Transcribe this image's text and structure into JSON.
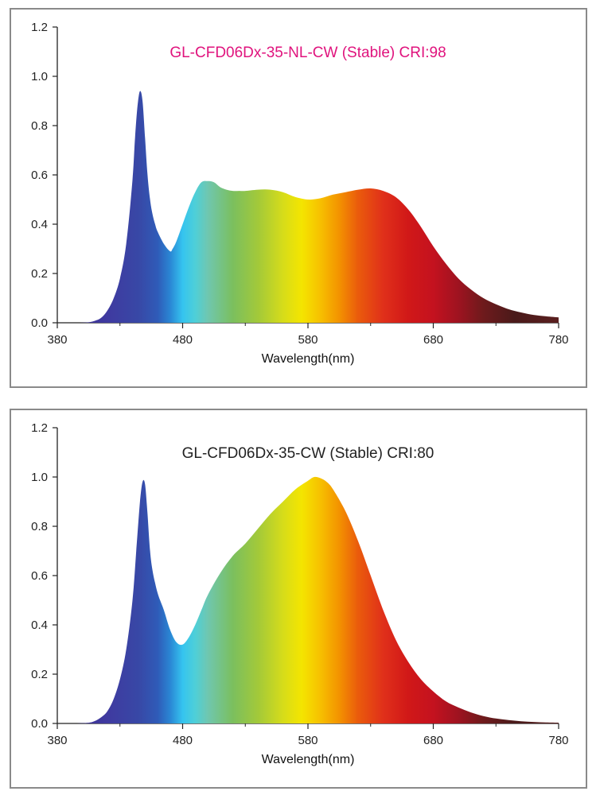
{
  "chart_data": [
    {
      "type": "area",
      "title": "GL-CFD06Dx-35-NL-CW (Stable) CRI:98",
      "title_color": "#e0137d",
      "xlabel": "Wavelength(nm)",
      "ylabel": "",
      "xlim": [
        380,
        780
      ],
      "ylim": [
        0,
        1.2
      ],
      "xticks": [
        "380",
        "480",
        "580",
        "680",
        "780"
      ],
      "yticks": [
        "0.0",
        "0.2",
        "0.4",
        "0.6",
        "0.8",
        "1.0",
        "1.2"
      ],
      "x": [
        398,
        405,
        410,
        415,
        420,
        425,
        430,
        435,
        440,
        442,
        444,
        446,
        448,
        450,
        452,
        454,
        456,
        458,
        460,
        465,
        470,
        472,
        475,
        480,
        485,
        490,
        495,
        500,
        505,
        510,
        515,
        520,
        525,
        530,
        540,
        550,
        560,
        570,
        580,
        590,
        600,
        610,
        620,
        630,
        640,
        650,
        660,
        670,
        680,
        690,
        700,
        710,
        720,
        730,
        740,
        750,
        760,
        770,
        780
      ],
      "values": [
        0.0,
        0.002,
        0.008,
        0.02,
        0.05,
        0.1,
        0.18,
        0.32,
        0.58,
        0.75,
        0.88,
        0.94,
        0.9,
        0.75,
        0.6,
        0.5,
        0.44,
        0.4,
        0.37,
        0.32,
        0.29,
        0.3,
        0.33,
        0.4,
        0.47,
        0.53,
        0.57,
        0.575,
        0.57,
        0.55,
        0.54,
        0.535,
        0.535,
        0.535,
        0.54,
        0.54,
        0.53,
        0.51,
        0.5,
        0.505,
        0.52,
        0.53,
        0.54,
        0.545,
        0.535,
        0.51,
        0.46,
        0.39,
        0.31,
        0.24,
        0.18,
        0.135,
        0.1,
        0.075,
        0.055,
        0.042,
        0.032,
        0.026,
        0.022
      ]
    },
    {
      "type": "area",
      "title": "GL-CFD06Dx-35-CW (Stable) CRI:80",
      "title_color": "#222222",
      "xlabel": "Wavelength(nm)",
      "ylabel": "",
      "xlim": [
        380,
        780
      ],
      "ylim": [
        0,
        1.2
      ],
      "xticks": [
        "380",
        "480",
        "580",
        "680",
        "780"
      ],
      "yticks": [
        "0.0",
        "0.2",
        "0.4",
        "0.6",
        "0.8",
        "1.0",
        "1.2"
      ],
      "x": [
        395,
        405,
        410,
        415,
        420,
        425,
        430,
        435,
        440,
        443,
        446,
        448,
        450,
        452,
        454,
        456,
        458,
        460,
        462,
        465,
        470,
        475,
        480,
        485,
        490,
        495,
        500,
        510,
        520,
        530,
        540,
        550,
        560,
        570,
        580,
        585,
        590,
        595,
        600,
        610,
        620,
        630,
        640,
        650,
        660,
        670,
        680,
        690,
        700,
        710,
        720,
        730,
        740,
        750,
        760,
        770,
        780
      ],
      "values": [
        0.0,
        0.003,
        0.01,
        0.025,
        0.05,
        0.1,
        0.18,
        0.3,
        0.5,
        0.7,
        0.9,
        0.98,
        0.97,
        0.85,
        0.7,
        0.62,
        0.57,
        0.53,
        0.5,
        0.46,
        0.38,
        0.33,
        0.32,
        0.35,
        0.4,
        0.46,
        0.52,
        0.61,
        0.68,
        0.73,
        0.79,
        0.85,
        0.9,
        0.95,
        0.985,
        1.0,
        0.995,
        0.98,
        0.95,
        0.86,
        0.74,
        0.6,
        0.46,
        0.34,
        0.25,
        0.18,
        0.13,
        0.09,
        0.065,
        0.045,
        0.03,
        0.02,
        0.014,
        0.009,
        0.006,
        0.004,
        0.003
      ]
    }
  ]
}
